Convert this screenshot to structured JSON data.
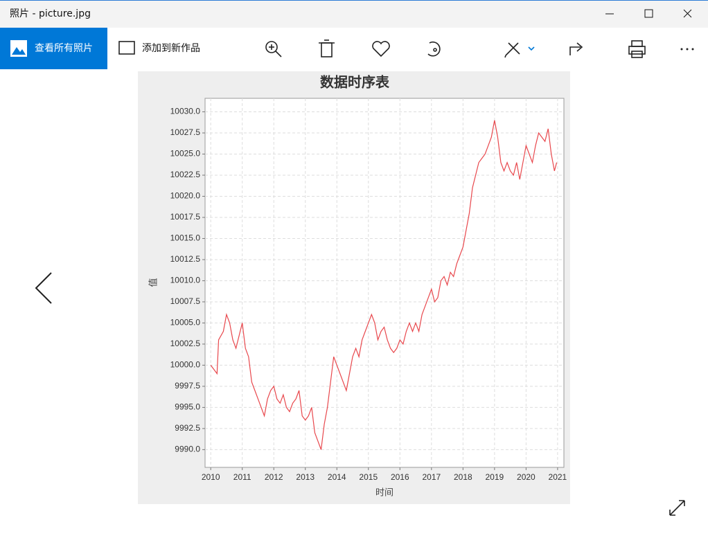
{
  "window": {
    "title": "照片 - picture.jpg"
  },
  "toolbar": {
    "view_all": "查看所有照片",
    "add_to": "添加到新作品"
  },
  "chart_data": {
    "type": "line",
    "title": "数据时序表",
    "x_label": "时间",
    "y_label": "值",
    "color": "#e8474c",
    "grid": true,
    "xlim": [
      2009.82,
      2021.2
    ],
    "xticks": [
      2010,
      2011,
      2012,
      2013,
      2014,
      2015,
      2016,
      2017,
      2018,
      2019,
      2020,
      2021
    ],
    "ylim": [
      9987.9,
      10031.6
    ],
    "yticks": [
      {
        "value": 9990,
        "label": "9990.0"
      },
      {
        "value": 9992.5,
        "label": "9992.5"
      },
      {
        "value": 9995,
        "label": "9995.0"
      },
      {
        "value": 9997.5,
        "label": "9997.5"
      },
      {
        "value": 10000,
        "label": "10000.0"
      },
      {
        "value": 10002.5,
        "label": "10002.5"
      },
      {
        "value": 10005,
        "label": "10005.0"
      },
      {
        "value": 10007.5,
        "label": "10007.5"
      },
      {
        "value": 10010,
        "label": "10010.0"
      },
      {
        "value": 10012.5,
        "label": "10012.5"
      },
      {
        "value": 10015,
        "label": "10015.0"
      },
      {
        "value": 10017.5,
        "label": "10017.5"
      },
      {
        "value": 10020,
        "label": "10020.0"
      },
      {
        "value": 10022.5,
        "label": "10022.5"
      },
      {
        "value": 10025,
        "label": "10025.0"
      },
      {
        "value": 10027.5,
        "label": "10027.5"
      },
      {
        "value": 10030,
        "label": "10030.0"
      }
    ],
    "x": [
      2010.0,
      2010.1,
      2010.2,
      2010.25,
      2010.4,
      2010.5,
      2010.6,
      2010.7,
      2010.8,
      2011.0,
      2011.1,
      2011.2,
      2011.3,
      2011.4,
      2011.5,
      2011.6,
      2011.7,
      2011.8,
      2011.9,
      2012.0,
      2012.1,
      2012.2,
      2012.3,
      2012.4,
      2012.5,
      2012.6,
      2012.7,
      2012.8,
      2012.9,
      2013.0,
      2013.1,
      2013.2,
      2013.3,
      2013.4,
      2013.5,
      2013.6,
      2013.7,
      2013.8,
      2013.9,
      2014.0,
      2014.1,
      2014.2,
      2014.3,
      2014.4,
      2014.5,
      2014.6,
      2014.7,
      2014.8,
      2014.9,
      2015.0,
      2015.1,
      2015.2,
      2015.3,
      2015.4,
      2015.5,
      2015.6,
      2015.7,
      2015.8,
      2015.9,
      2016.0,
      2016.1,
      2016.2,
      2016.3,
      2016.4,
      2016.5,
      2016.6,
      2016.7,
      2016.8,
      2016.9,
      2017.0,
      2017.1,
      2017.2,
      2017.3,
      2017.4,
      2017.5,
      2017.6,
      2017.7,
      2017.8,
      2017.9,
      2018.0,
      2018.1,
      2018.2,
      2018.3,
      2018.4,
      2018.5,
      2018.6,
      2018.7,
      2018.8,
      2018.9,
      2019.0,
      2019.1,
      2019.2,
      2019.3,
      2019.4,
      2019.5,
      2019.6,
      2019.7,
      2019.8,
      2019.9,
      2020.0,
      2020.1,
      2020.2,
      2020.3,
      2020.4,
      2020.5,
      2020.6,
      2020.7,
      2020.8,
      2020.9,
      2020.97
    ],
    "values": [
      10000,
      9999.5,
      9999,
      10003,
      10004,
      10006,
      10005,
      10003,
      10002,
      10005,
      10002,
      10001,
      9998,
      9997,
      9996,
      9995,
      9994,
      9996,
      9997,
      9997.5,
      9996,
      9995.5,
      9996.5,
      9995,
      9994.5,
      9995.5,
      9996,
      9997,
      9994,
      9993.5,
      9994,
      9995,
      9992,
      9991,
      9990,
      9993,
      9995,
      9998,
      10001,
      10000,
      9999,
      9998,
      9997,
      9999,
      10001,
      10002,
      10001,
      10003,
      10004,
      10005,
      10006,
      10005,
      10003,
      10004,
      10004.5,
      10003,
      10002,
      10001.5,
      10002,
      10003,
      10002.5,
      10004,
      10005,
      10004,
      10005,
      10004,
      10006,
      10007,
      10008,
      10009,
      10007.5,
      10008,
      10010,
      10010.5,
      10009.5,
      10011,
      10010.5,
      10012,
      10013,
      10014,
      10016,
      10018,
      10021,
      10022.5,
      10024,
      10024.5,
      10025,
      10026,
      10027,
      10029,
      10027,
      10024,
      10023,
      10024,
      10023,
      10022.5,
      10024,
      10022,
      10024,
      10026,
      10025,
      10024,
      10026,
      10027.5,
      10027,
      10026.5,
      10028,
      10025,
      10023,
      10024
    ]
  }
}
